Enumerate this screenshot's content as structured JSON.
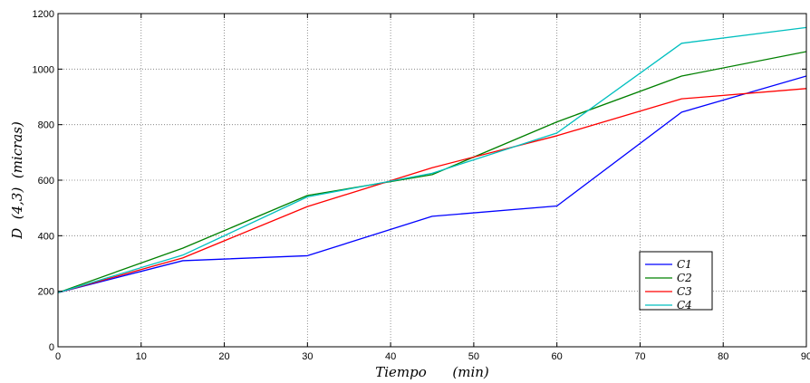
{
  "chart_data": {
    "type": "line",
    "xlabel": "Tiempo      (min)",
    "ylabel": "D  (4,3)  (micras)",
    "xlim": [
      0,
      90
    ],
    "ylim": [
      0,
      1200
    ],
    "xticks": [
      0,
      10,
      20,
      30,
      40,
      50,
      60,
      70,
      80,
      90
    ],
    "yticks": [
      0,
      200,
      400,
      600,
      800,
      1000,
      1200
    ],
    "grid": true,
    "legend_position": "center-right",
    "x": [
      0,
      15,
      30,
      45,
      60,
      75,
      90
    ],
    "series": [
      {
        "name": "C1",
        "color": "#0000ff",
        "values": [
          195,
          310,
          328,
          470,
          507,
          845,
          975
        ]
      },
      {
        "name": "C2",
        "color": "#008000",
        "values": [
          195,
          355,
          545,
          620,
          810,
          975,
          1063
        ]
      },
      {
        "name": "C3",
        "color": "#ff0000",
        "values": [
          195,
          320,
          505,
          645,
          760,
          893,
          930
        ]
      },
      {
        "name": "C4",
        "color": "#00bfbf",
        "values": [
          195,
          330,
          540,
          625,
          770,
          1093,
          1150
        ]
      }
    ]
  }
}
